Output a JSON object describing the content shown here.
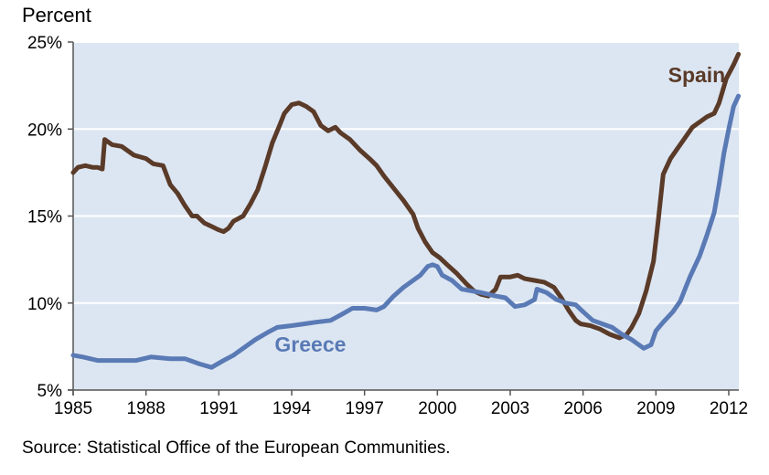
{
  "chart_data": {
    "type": "line",
    "title": "",
    "ylabel": "Percent",
    "xlabel": "",
    "xlim": [
      1985,
      2012.5
    ],
    "ylim": [
      5,
      25
    ],
    "x_ticks": [
      1985,
      1988,
      1991,
      1994,
      1997,
      2000,
      2003,
      2006,
      2009,
      2012
    ],
    "x_tick_labels": [
      "1985",
      "1988",
      "1991",
      "1994",
      "1997",
      "2000",
      "2003",
      "2006",
      "2009",
      "2012"
    ],
    "y_ticks": [
      5,
      10,
      15,
      20,
      25
    ],
    "y_tick_labels": [
      "5%",
      "10%",
      "15%",
      "20%",
      "25%"
    ],
    "grid": "horizontal",
    "plot_background": "#dce6f2",
    "series": [
      {
        "name": "Spain",
        "color": "#5a3a28",
        "points": [
          [
            1985.0,
            17.5
          ],
          [
            1985.2,
            17.8
          ],
          [
            1985.5,
            17.9
          ],
          [
            1985.8,
            17.8
          ],
          [
            1986.0,
            17.8
          ],
          [
            1986.2,
            17.7
          ],
          [
            1986.3,
            19.4
          ],
          [
            1986.6,
            19.1
          ],
          [
            1987.0,
            19.0
          ],
          [
            1987.5,
            18.5
          ],
          [
            1988.0,
            18.3
          ],
          [
            1988.3,
            18.0
          ],
          [
            1988.7,
            17.9
          ],
          [
            1989.0,
            16.8
          ],
          [
            1989.3,
            16.3
          ],
          [
            1989.6,
            15.6
          ],
          [
            1989.9,
            15.0
          ],
          [
            1990.1,
            15.0
          ],
          [
            1990.4,
            14.6
          ],
          [
            1990.7,
            14.4
          ],
          [
            1991.0,
            14.2
          ],
          [
            1991.2,
            14.1
          ],
          [
            1991.4,
            14.3
          ],
          [
            1991.6,
            14.7
          ],
          [
            1992.0,
            15.0
          ],
          [
            1992.3,
            15.7
          ],
          [
            1992.6,
            16.5
          ],
          [
            1992.9,
            17.8
          ],
          [
            1993.2,
            19.2
          ],
          [
            1993.5,
            20.2
          ],
          [
            1993.7,
            20.9
          ],
          [
            1994.0,
            21.4
          ],
          [
            1994.3,
            21.5
          ],
          [
            1994.6,
            21.3
          ],
          [
            1994.9,
            21.0
          ],
          [
            1995.2,
            20.2
          ],
          [
            1995.5,
            19.9
          ],
          [
            1995.8,
            20.1
          ],
          [
            1996.0,
            19.8
          ],
          [
            1996.4,
            19.4
          ],
          [
            1996.8,
            18.8
          ],
          [
            1997.2,
            18.3
          ],
          [
            1997.5,
            17.9
          ],
          [
            1997.8,
            17.3
          ],
          [
            1998.2,
            16.6
          ],
          [
            1998.6,
            15.9
          ],
          [
            1999.0,
            15.1
          ],
          [
            1999.2,
            14.3
          ],
          [
            1999.5,
            13.5
          ],
          [
            1999.8,
            12.9
          ],
          [
            2000.1,
            12.6
          ],
          [
            2000.4,
            12.2
          ],
          [
            2000.8,
            11.7
          ],
          [
            2001.2,
            11.1
          ],
          [
            2001.5,
            10.7
          ],
          [
            2001.8,
            10.5
          ],
          [
            2002.1,
            10.4
          ],
          [
            2002.4,
            10.8
          ],
          [
            2002.6,
            11.5
          ],
          [
            2003.0,
            11.5
          ],
          [
            2003.3,
            11.6
          ],
          [
            2003.6,
            11.4
          ],
          [
            2004.0,
            11.3
          ],
          [
            2004.4,
            11.2
          ],
          [
            2004.8,
            10.9
          ],
          [
            2005.1,
            10.3
          ],
          [
            2005.4,
            9.6
          ],
          [
            2005.7,
            9.0
          ],
          [
            2005.9,
            8.8
          ],
          [
            2006.3,
            8.7
          ],
          [
            2006.7,
            8.5
          ],
          [
            2007.1,
            8.2
          ],
          [
            2007.5,
            8.0
          ],
          [
            2007.8,
            8.2
          ],
          [
            2008.0,
            8.6
          ],
          [
            2008.3,
            9.4
          ],
          [
            2008.6,
            10.7
          ],
          [
            2008.9,
            12.4
          ],
          [
            2009.1,
            14.8
          ],
          [
            2009.3,
            17.4
          ],
          [
            2009.6,
            18.3
          ],
          [
            2009.9,
            18.9
          ],
          [
            2010.2,
            19.5
          ],
          [
            2010.5,
            20.1
          ],
          [
            2010.8,
            20.4
          ],
          [
            2011.1,
            20.7
          ],
          [
            2011.4,
            20.9
          ],
          [
            2011.6,
            21.5
          ],
          [
            2011.9,
            22.9
          ],
          [
            2012.2,
            23.7
          ],
          [
            2012.4,
            24.3
          ]
        ],
        "label_pos": [
          2009.5,
          22.7
        ]
      },
      {
        "name": "Greece",
        "color": "#5a7ab5",
        "points": [
          [
            1985.0,
            7.0
          ],
          [
            1985.4,
            6.9
          ],
          [
            1986.0,
            6.7
          ],
          [
            1987.0,
            6.7
          ],
          [
            1987.6,
            6.7
          ],
          [
            1988.2,
            6.9
          ],
          [
            1989.0,
            6.8
          ],
          [
            1989.6,
            6.8
          ],
          [
            1990.2,
            6.5
          ],
          [
            1990.7,
            6.3
          ],
          [
            1991.2,
            6.7
          ],
          [
            1991.6,
            7.0
          ],
          [
            1992.0,
            7.4
          ],
          [
            1992.5,
            7.9
          ],
          [
            1993.0,
            8.3
          ],
          [
            1993.4,
            8.6
          ],
          [
            1994.0,
            8.7
          ],
          [
            1994.5,
            8.8
          ],
          [
            1995.0,
            8.9
          ],
          [
            1995.6,
            9.0
          ],
          [
            1996.0,
            9.3
          ],
          [
            1996.5,
            9.7
          ],
          [
            1997.0,
            9.7
          ],
          [
            1997.5,
            9.6
          ],
          [
            1997.8,
            9.8
          ],
          [
            1998.2,
            10.4
          ],
          [
            1998.6,
            10.9
          ],
          [
            1999.0,
            11.3
          ],
          [
            1999.3,
            11.6
          ],
          [
            1999.6,
            12.1
          ],
          [
            1999.8,
            12.2
          ],
          [
            2000.0,
            12.1
          ],
          [
            2000.2,
            11.6
          ],
          [
            2000.6,
            11.3
          ],
          [
            2001.0,
            10.8
          ],
          [
            2001.4,
            10.7
          ],
          [
            2001.8,
            10.6
          ],
          [
            2002.1,
            10.5
          ],
          [
            2002.4,
            10.4
          ],
          [
            2002.8,
            10.3
          ],
          [
            2003.2,
            9.8
          ],
          [
            2003.6,
            9.9
          ],
          [
            2004.0,
            10.2
          ],
          [
            2004.1,
            10.8
          ],
          [
            2004.5,
            10.6
          ],
          [
            2004.9,
            10.2
          ],
          [
            2005.3,
            10.0
          ],
          [
            2005.7,
            9.9
          ],
          [
            2006.0,
            9.5
          ],
          [
            2006.4,
            9.0
          ],
          [
            2006.8,
            8.8
          ],
          [
            2007.2,
            8.6
          ],
          [
            2007.6,
            8.2
          ],
          [
            2008.0,
            7.9
          ],
          [
            2008.3,
            7.6
          ],
          [
            2008.5,
            7.4
          ],
          [
            2008.8,
            7.6
          ],
          [
            2009.0,
            8.4
          ],
          [
            2009.3,
            8.9
          ],
          [
            2009.7,
            9.5
          ],
          [
            2010.0,
            10.1
          ],
          [
            2010.4,
            11.5
          ],
          [
            2010.8,
            12.7
          ],
          [
            2011.1,
            13.9
          ],
          [
            2011.4,
            15.2
          ],
          [
            2011.6,
            16.8
          ],
          [
            2011.8,
            18.6
          ],
          [
            2012.0,
            20.0
          ],
          [
            2012.2,
            21.3
          ],
          [
            2012.4,
            21.9
          ]
        ],
        "label_pos": [
          1993.3,
          7.2
        ]
      }
    ]
  },
  "source_text": "Source: Statistical Office of the European Communities."
}
